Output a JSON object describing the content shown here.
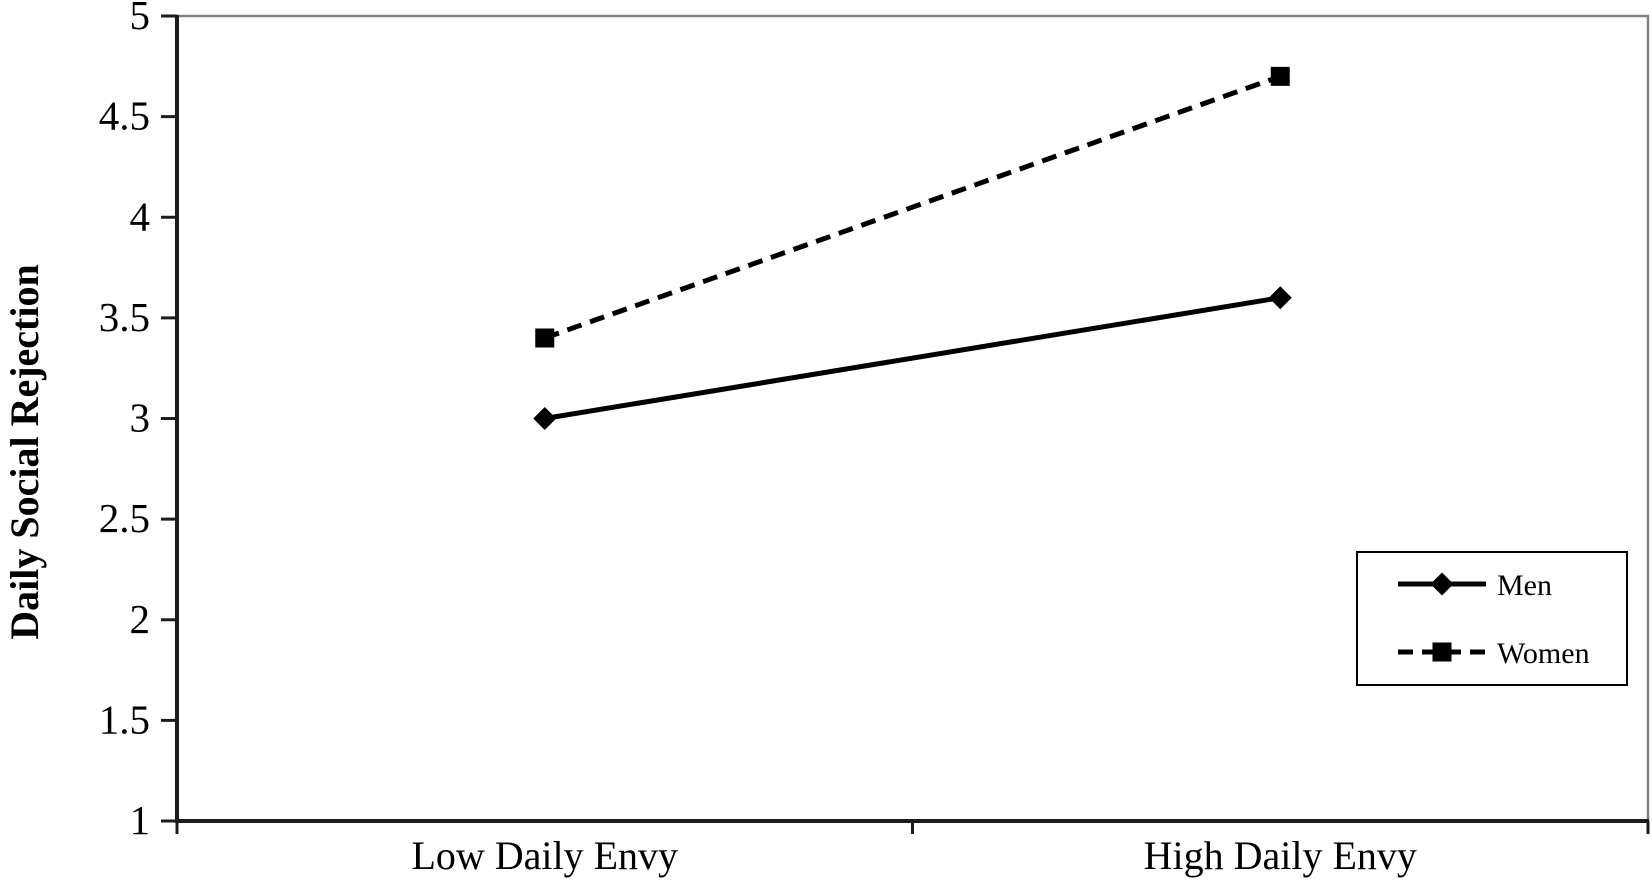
{
  "chart_data": {
    "type": "line",
    "title": "",
    "xlabel": "",
    "ylabel": "Daily Social Rejection",
    "categories": [
      "Low Daily Envy",
      "High Daily Envy"
    ],
    "series": [
      {
        "name": "Men",
        "values": [
          3.0,
          3.6
        ],
        "line_style": "solid",
        "marker": "diamond",
        "color": "#000000"
      },
      {
        "name": "Women",
        "values": [
          3.4,
          4.7
        ],
        "line_style": "dashed",
        "marker": "square",
        "color": "#000000"
      }
    ],
    "ylim": [
      1,
      5
    ],
    "ytick_step": 0.5,
    "ytick_labels": [
      "1",
      "1.5",
      "2",
      "2.5",
      "3",
      "3.5",
      "4",
      "4.5",
      "5"
    ],
    "grid": false,
    "legend_position": "middle-right",
    "legend_entries": [
      "Men",
      "Women"
    ],
    "colors": {
      "background": "#ffffff",
      "axis": "#1c1c1c",
      "plot_border_top_right": "#808080",
      "text": "#000000",
      "legend_border": "#000000"
    }
  }
}
